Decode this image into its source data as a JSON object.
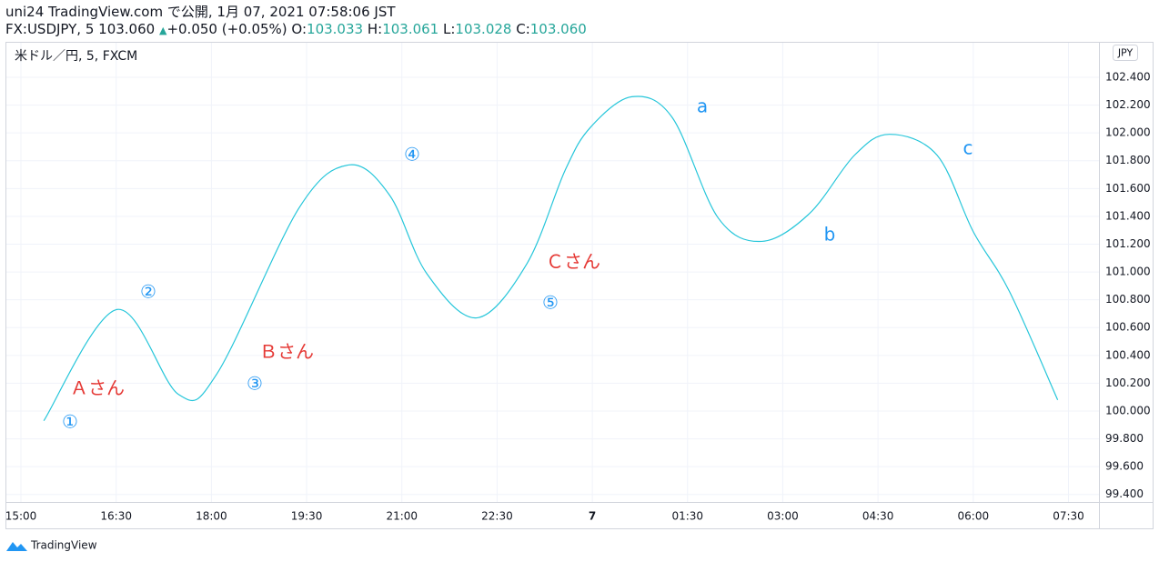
{
  "header": {
    "line1": "uni24 TradingView.com で公開, 1月 07, 2021 07:58:06 JST",
    "symbol": "FX:USDJPY, 5 103.060",
    "arrow": "▲",
    "change": "+0.050 (+0.05%)",
    "o_label": "O:",
    "o": "103.033",
    "h_label": "H:",
    "h": "103.061",
    "l_label": "L:",
    "l": "103.028",
    "c_label": "C:",
    "c": "103.060"
  },
  "chart_data": {
    "type": "line",
    "legend": "米ドル／円, 5, FXCM",
    "currency": "JPY",
    "x": [
      15.36,
      16.51,
      17.48,
      18.09,
      19.38,
      20.17,
      20.81,
      21.39,
      22.18,
      22.97,
      23.57,
      23.97,
      24.62,
      25.26,
      25.98,
      26.67,
      27.42,
      28.13,
      28.68,
      29.43,
      30.0,
      30.57,
      31.33
    ],
    "series": [
      {
        "color": "#26c6da",
        "values": [
          99.93,
          100.73,
          100.12,
          100.27,
          101.46,
          101.77,
          101.55,
          100.99,
          100.67,
          101.06,
          101.73,
          102.04,
          102.26,
          102.11,
          101.39,
          101.22,
          101.42,
          101.84,
          101.99,
          101.84,
          101.29,
          100.86,
          100.08
        ]
      }
    ],
    "xlim": [
      14.756,
      31.98
    ],
    "xticks": [
      {
        "value": 15,
        "label": "15:00"
      },
      {
        "value": 16.5,
        "label": "16:30"
      },
      {
        "value": 18,
        "label": "18:00"
      },
      {
        "value": 19.5,
        "label": "19:30"
      },
      {
        "value": 21,
        "label": "21:00"
      },
      {
        "value": 22.5,
        "label": "22:30"
      },
      {
        "value": 24,
        "label": "7"
      },
      {
        "value": 25.5,
        "label": "01:30"
      },
      {
        "value": 27,
        "label": "03:00"
      },
      {
        "value": 28.5,
        "label": "04:30"
      },
      {
        "value": 30,
        "label": "06:00"
      },
      {
        "value": 31.5,
        "label": "07:30"
      }
    ],
    "ylim": [
      99.346,
      102.655
    ],
    "yticks": [
      {
        "value": 99.4,
        "label": "99.400"
      },
      {
        "value": 99.6,
        "label": "99.600"
      },
      {
        "value": 99.8,
        "label": "99.800"
      },
      {
        "value": 100,
        "label": "100.000"
      },
      {
        "value": 100.2,
        "label": "100.200"
      },
      {
        "value": 100.4,
        "label": "100.400"
      },
      {
        "value": 100.6,
        "label": "100.600"
      },
      {
        "value": 100.8,
        "label": "100.800"
      },
      {
        "value": 101,
        "label": "101.000"
      },
      {
        "value": 101.2,
        "label": "101.200"
      },
      {
        "value": 101.4,
        "label": "101.400"
      },
      {
        "value": 101.6,
        "label": "101.600"
      },
      {
        "value": 101.8,
        "label": "101.800"
      },
      {
        "value": 102,
        "label": "102.000"
      },
      {
        "value": 102.2,
        "label": "102.200"
      },
      {
        "value": 102.4,
        "label": "102.400"
      }
    ],
    "grid": true,
    "annotations": [
      {
        "text": "①",
        "color": "#2196f3"
      },
      {
        "text": "②",
        "color": "#2196f3"
      },
      {
        "text": "③",
        "color": "#2196f3"
      },
      {
        "text": "④",
        "color": "#2196f3"
      },
      {
        "text": "⑤",
        "color": "#2196f3"
      },
      {
        "text": "Ａさん",
        "color": "#e53935"
      },
      {
        "text": "Ｂさん",
        "color": "#e53935"
      },
      {
        "text": "Ｃさん",
        "color": "#e53935"
      },
      {
        "text": "a",
        "color": "#2196f3"
      },
      {
        "text": "b",
        "color": "#2196f3"
      },
      {
        "text": "c",
        "color": "#2196f3"
      }
    ]
  },
  "footer": {
    "brand": "TradingView"
  }
}
